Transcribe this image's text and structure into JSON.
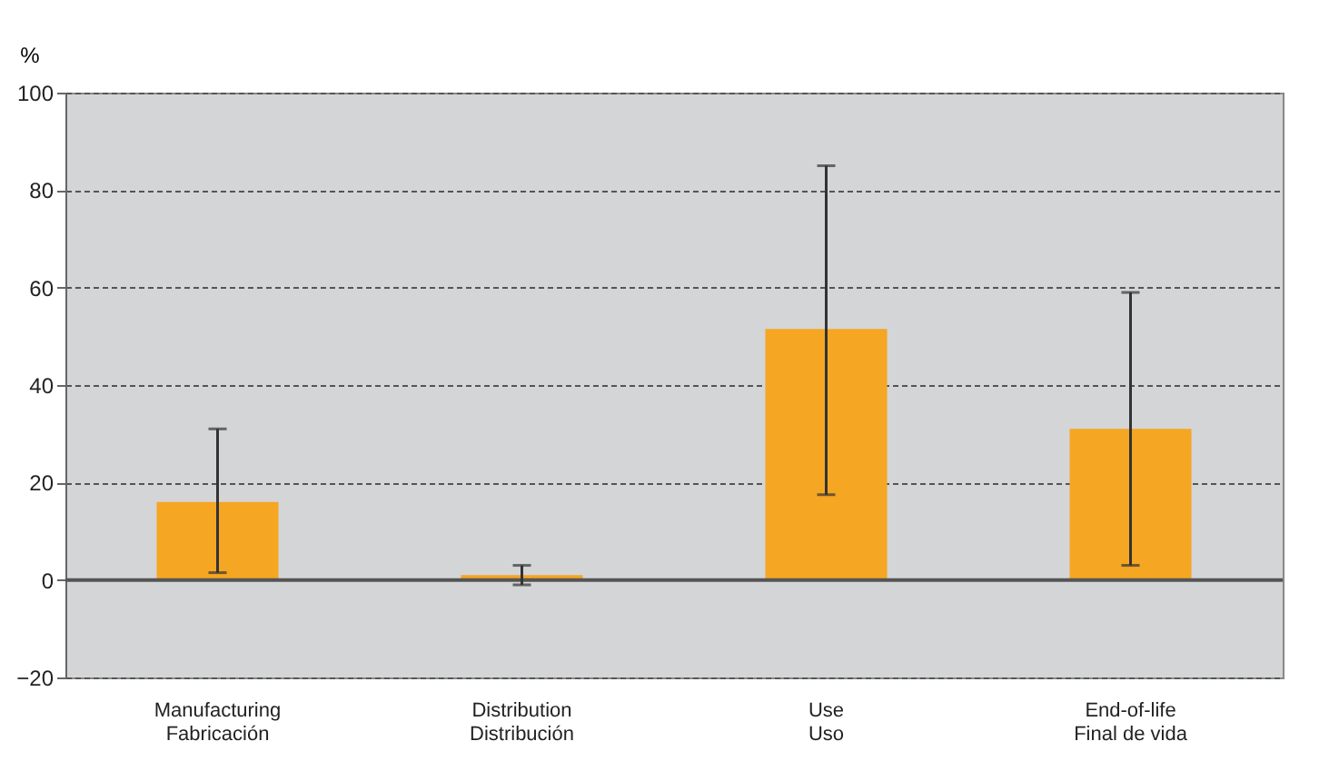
{
  "chart_data": {
    "type": "bar",
    "ylabel": "%",
    "categories": [
      "Manufacturing\nFabricación",
      "Distribution\nDistribución",
      "Use\nUso",
      "End-of-life\nFinal de vida"
    ],
    "values": [
      16,
      1,
      51.5,
      31
    ],
    "errors": [
      [
        1.5,
        31
      ],
      [
        -1,
        3
      ],
      [
        17.5,
        85
      ],
      [
        3,
        59
      ]
    ],
    "color": "#f5a623",
    "ylim": [
      -20,
      100
    ],
    "yticks": [
      -20,
      0,
      20,
      40,
      60,
      80,
      100
    ],
    "grid": "y",
    "ref_lines": [
      {
        "axis": "y",
        "value": 0,
        "color": "#555555"
      }
    ]
  }
}
